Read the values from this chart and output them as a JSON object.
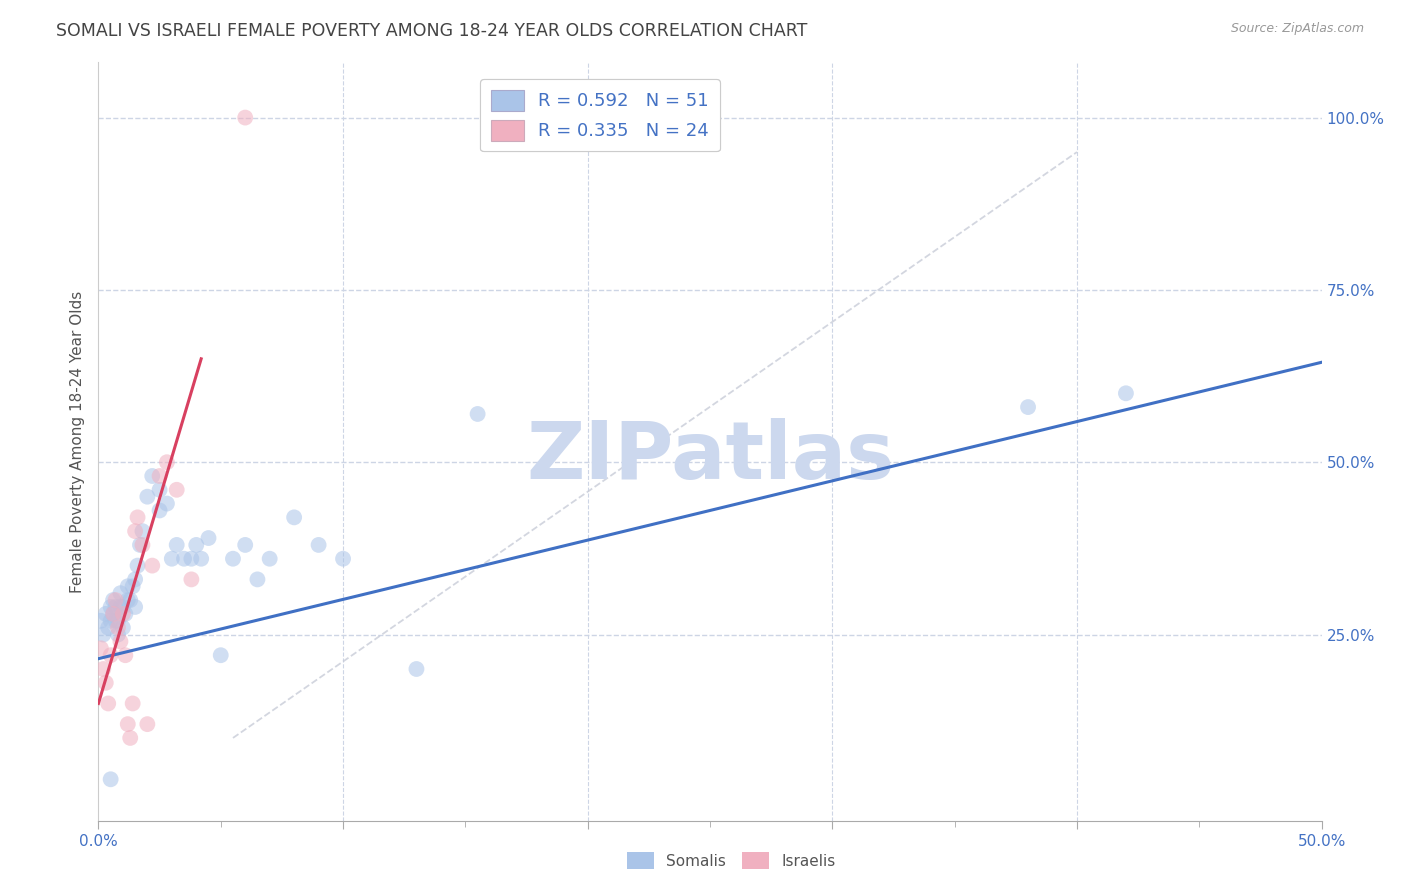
{
  "title": "SOMALI VS ISRAELI FEMALE POVERTY AMONG 18-24 YEAR OLDS CORRELATION CHART",
  "source": "Source: ZipAtlas.com",
  "ylabel": "Female Poverty Among 18-24 Year Olds",
  "xlim": [
    0.0,
    0.5
  ],
  "ylim": [
    -0.02,
    1.08
  ],
  "xticks": [
    0.0,
    0.1,
    0.2,
    0.3,
    0.4,
    0.5
  ],
  "yticks": [
    0.25,
    0.5,
    0.75,
    1.0
  ],
  "xtick_labels_show": [
    "0.0%",
    "50.0%"
  ],
  "ytick_labels": [
    "25.0%",
    "50.0%",
    "75.0%",
    "100.0%"
  ],
  "somali_color": "#aac4e8",
  "israeli_color": "#f0b0c0",
  "somali_line_color": "#4070c4",
  "israeli_line_color": "#d84060",
  "identity_line_color": "#c8ccd8",
  "watermark_text": "ZIPatlas",
  "watermark_color": "#ccd8ee",
  "legend_somali": "R = 0.592   N = 51",
  "legend_israeli": "R = 0.335   N = 24",
  "somali_x": [
    0.001,
    0.002,
    0.003,
    0.004,
    0.005,
    0.005,
    0.006,
    0.006,
    0.007,
    0.007,
    0.008,
    0.008,
    0.009,
    0.009,
    0.01,
    0.01,
    0.011,
    0.012,
    0.012,
    0.013,
    0.014,
    0.015,
    0.015,
    0.016,
    0.017,
    0.018,
    0.02,
    0.022,
    0.025,
    0.025,
    0.028,
    0.03,
    0.032,
    0.035,
    0.038,
    0.04,
    0.042,
    0.045,
    0.05,
    0.055,
    0.06,
    0.065,
    0.07,
    0.08,
    0.09,
    0.1,
    0.13,
    0.155,
    0.38,
    0.42,
    0.005
  ],
  "somali_y": [
    0.27,
    0.25,
    0.28,
    0.26,
    0.27,
    0.29,
    0.28,
    0.3,
    0.27,
    0.29,
    0.25,
    0.27,
    0.29,
    0.31,
    0.26,
    0.29,
    0.28,
    0.3,
    0.32,
    0.3,
    0.32,
    0.29,
    0.33,
    0.35,
    0.38,
    0.4,
    0.45,
    0.48,
    0.43,
    0.46,
    0.44,
    0.36,
    0.38,
    0.36,
    0.36,
    0.38,
    0.36,
    0.39,
    0.22,
    0.36,
    0.38,
    0.33,
    0.36,
    0.42,
    0.38,
    0.36,
    0.2,
    0.57,
    0.58,
    0.6,
    0.04
  ],
  "israeli_x": [
    0.001,
    0.002,
    0.003,
    0.004,
    0.005,
    0.006,
    0.007,
    0.008,
    0.009,
    0.01,
    0.011,
    0.012,
    0.013,
    0.014,
    0.015,
    0.016,
    0.018,
    0.02,
    0.022,
    0.025,
    0.028,
    0.032,
    0.038,
    0.06
  ],
  "israeli_y": [
    0.23,
    0.2,
    0.18,
    0.15,
    0.22,
    0.28,
    0.3,
    0.26,
    0.24,
    0.28,
    0.22,
    0.12,
    0.1,
    0.15,
    0.4,
    0.42,
    0.38,
    0.12,
    0.35,
    0.48,
    0.5,
    0.46,
    0.33,
    1.0
  ],
  "somali_line_x0": 0.0,
  "somali_line_y0": 0.215,
  "somali_line_x1": 0.5,
  "somali_line_y1": 0.645,
  "israeli_line_x0": 0.0,
  "israeli_line_y0": 0.15,
  "israeli_line_x1": 0.042,
  "israeli_line_y1": 0.65,
  "diag_line_x0": 0.055,
  "diag_line_y0": 0.1,
  "diag_line_x1": 0.4,
  "diag_line_y1": 0.95,
  "background_color": "#ffffff",
  "grid_color": "#cdd5e5",
  "title_fontsize": 12.5,
  "axis_label_fontsize": 11,
  "tick_fontsize": 11,
  "marker_size": 130,
  "marker_alpha": 0.55,
  "line_width": 2.2
}
